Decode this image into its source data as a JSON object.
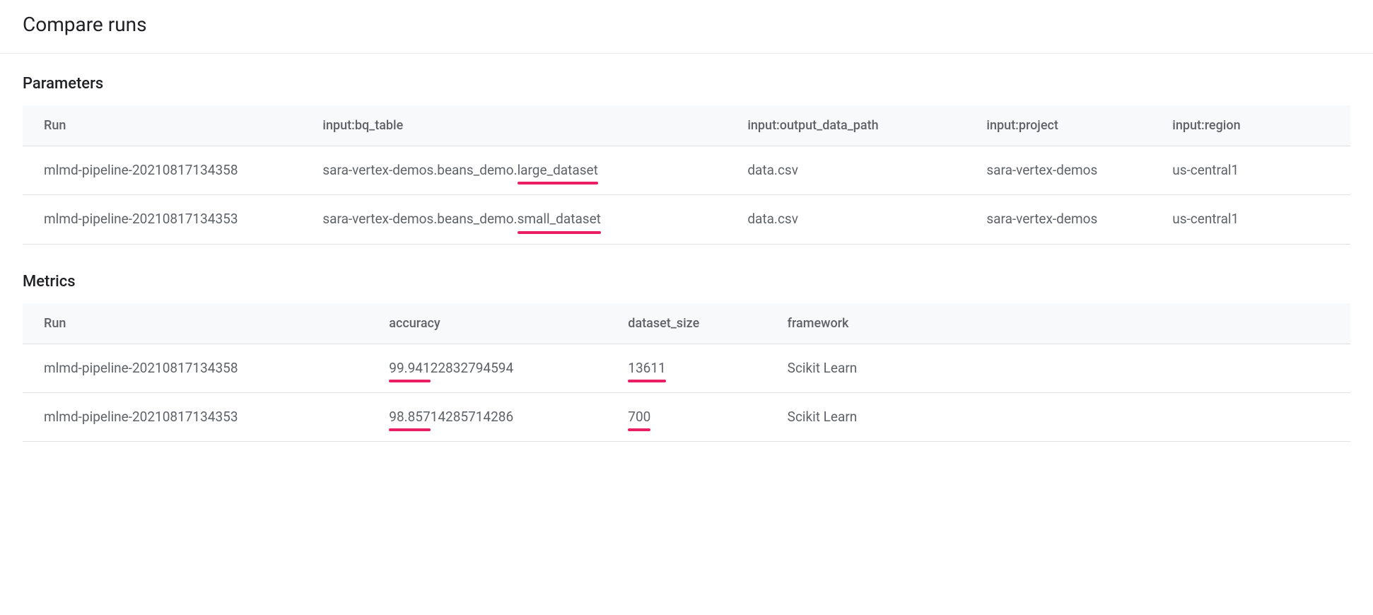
{
  "page_title": "Compare runs",
  "highlight_color": "#e91e63",
  "parameters": {
    "title": "Parameters",
    "columns": [
      "Run",
      "input:bq_table",
      "input:output_data_path",
      "input:project",
      "input:region"
    ],
    "rows": [
      {
        "run": "mlmd-pipeline-20210817134358",
        "bq_table_prefix": "sara-vertex-demos.beans_demo.",
        "bq_table_highlight": "large_dataset",
        "output_data_path": "data.csv",
        "project": "sara-vertex-demos",
        "region": "us-central1"
      },
      {
        "run": "mlmd-pipeline-20210817134353",
        "bq_table_prefix": "sara-vertex-demos.beans_demo.",
        "bq_table_highlight": "small_dataset",
        "output_data_path": "data.csv",
        "project": "sara-vertex-demos",
        "region": "us-central1"
      }
    ]
  },
  "metrics": {
    "title": "Metrics",
    "columns": [
      "Run",
      "accuracy",
      "dataset_size",
      "framework"
    ],
    "rows": [
      {
        "run": "mlmd-pipeline-20210817134358",
        "accuracy_highlight": "99.941",
        "accuracy_rest": "22832794594",
        "dataset_size": "13611",
        "framework": "Scikit Learn"
      },
      {
        "run": "mlmd-pipeline-20210817134353",
        "accuracy_highlight": "98.857",
        "accuracy_rest": "14285714286",
        "dataset_size": "700",
        "framework": "Scikit Learn"
      }
    ]
  }
}
